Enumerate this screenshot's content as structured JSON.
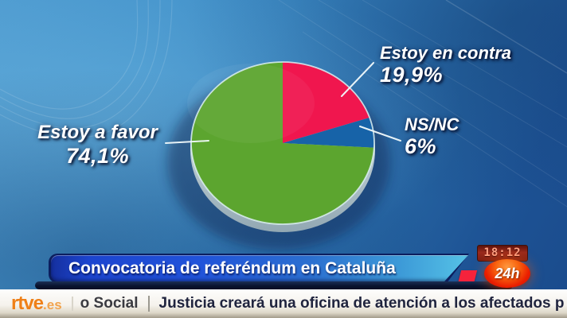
{
  "chart_data": {
    "type": "pie",
    "title": "Convocatoria de referéndum en Cataluña",
    "start_at": "12-oclock-clockwise",
    "slices": [
      {
        "label": "Estoy en contra",
        "value": 19.9,
        "display": "19,9%",
        "color": "#f0164e"
      },
      {
        "label": "NS/NC",
        "value": 6,
        "display": "6%",
        "color": "#1763a8"
      },
      {
        "label": "Estoy a favor",
        "value": 74.1,
        "display": "74,1%",
        "color": "#5ca52f"
      }
    ]
  },
  "banner": {
    "title": "Convocatoria de referéndum en Cataluña"
  },
  "channel": {
    "clock": "18:12",
    "logo": "24h"
  },
  "ticker": {
    "brand_main": "rtve",
    "brand_suffix": ".es",
    "section": "o Social",
    "headline": "Justicia creará una oficina de atención a los afectados p"
  },
  "colors": {
    "banner_blue_start": "#1c45cf",
    "banner_blue_end": "#55c2e6",
    "tab_red": "#f5233c",
    "logo_orange": "#ef8018",
    "clock_bg": "#9a2a1c",
    "logo24_red": "#ea1e00"
  }
}
